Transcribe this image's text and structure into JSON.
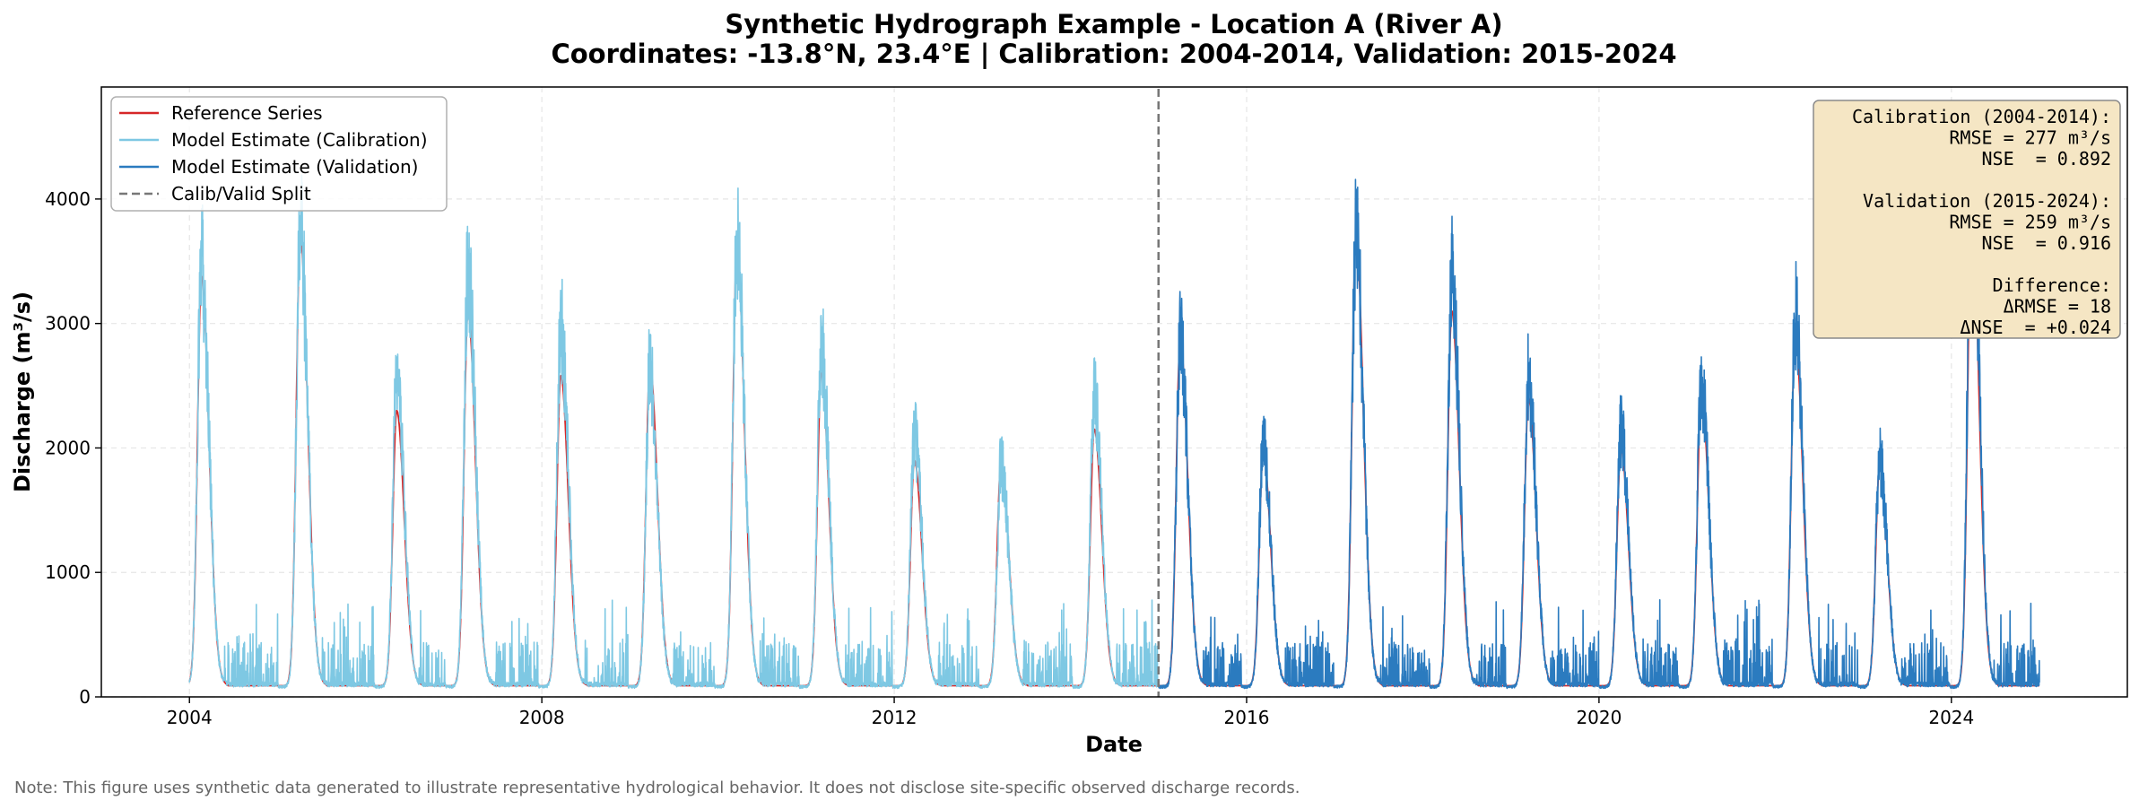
{
  "colors": {
    "reference": "#d62728",
    "calibration": "#7ec8e3",
    "validation": "#2b7bbf",
    "split": "#777777",
    "stats_box_fill": "#f5e6c4",
    "stats_box_edge": "#8a8a8a",
    "grid": "#e6e6e6"
  },
  "chart_data": {
    "type": "line",
    "title": "Synthetic Hydrograph Example - Location A (River A)",
    "subtitle": "Coordinates: -13.8°N, 23.4°E  |  Calibration: 2004-2014, Validation: 2015-2024",
    "xlabel": "Date",
    "ylabel": "Discharge (m³/s)",
    "xlim": [
      "2003-01-01",
      "2025-12-31"
    ],
    "ylim": [
      0,
      4900
    ],
    "x_ticks": [
      "2004",
      "2008",
      "2012",
      "2016",
      "2020",
      "2024"
    ],
    "y_ticks": [
      "0",
      "1000",
      "2000",
      "3000",
      "4000"
    ],
    "grid": true,
    "legend_position": "top-left",
    "split_date": "2015-01-01",
    "baseline": 90,
    "peaks": [
      {
        "date": "2004-02-20",
        "reference": 3380,
        "model": 3500
      },
      {
        "date": "2005-04-05",
        "reference": 3700,
        "model": 3750
      },
      {
        "date": "2006-05-10",
        "reference": 2300,
        "model": 2580
      },
      {
        "date": "2007-03-01",
        "reference": 3100,
        "model": 3420
      },
      {
        "date": "2008-03-20",
        "reference": 2580,
        "model": 2980
      },
      {
        "date": "2009-03-25",
        "reference": 2660,
        "model": 2650
      },
      {
        "date": "2010-03-20",
        "reference": 3600,
        "model": 3720
      },
      {
        "date": "2011-03-05",
        "reference": 2600,
        "model": 2850
      },
      {
        "date": "2012-03-25",
        "reference": 1900,
        "model": 2110
      },
      {
        "date": "2013-03-20",
        "reference": 1900,
        "model": 1880
      },
      {
        "date": "2014-04-10",
        "reference": 2150,
        "model": 2400
      },
      {
        "date": "2015-04-01",
        "reference": 2870,
        "model": 2880
      },
      {
        "date": "2016-03-10",
        "reference": 1960,
        "model": 2050
      },
      {
        "date": "2017-03-30",
        "reference": 3700,
        "model": 3710
      },
      {
        "date": "2018-05-01",
        "reference": 3100,
        "model": 3380
      },
      {
        "date": "2019-03-15",
        "reference": 2400,
        "model": 2570
      },
      {
        "date": "2020-04-01",
        "reference": 2000,
        "model": 2140
      },
      {
        "date": "2021-03-01",
        "reference": 2450,
        "model": 2540
      },
      {
        "date": "2022-03-25",
        "reference": 2900,
        "model": 3070
      },
      {
        "date": "2023-03-10",
        "reference": 1870,
        "model": 1920
      },
      {
        "date": "2024-03-25",
        "reference": 3900,
        "model": 4400
      }
    ],
    "series": [
      {
        "name": "Reference Series",
        "color": "#d62728"
      },
      {
        "name": "Model Estimate (Calibration)",
        "color": "#7ec8e3"
      },
      {
        "name": "Model Estimate (Validation)",
        "color": "#2b7bbf"
      },
      {
        "name": "Calib/Valid Split",
        "color": "#777777"
      }
    ]
  },
  "legend": {
    "items": [
      {
        "label": "Reference Series"
      },
      {
        "label": "Model Estimate (Calibration)"
      },
      {
        "label": "Model Estimate (Validation)"
      },
      {
        "label": "Calib/Valid Split"
      }
    ]
  },
  "stats_box": {
    "lines": [
      "Calibration (2004-2014):",
      "RMSE = 277 m³/s",
      "NSE  = 0.892",
      "",
      "Validation (2015-2024):",
      "RMSE = 259 m³/s",
      "NSE  = 0.916",
      "",
      "Difference:",
      "ΔRMSE = 18",
      "ΔNSE  = +0.024"
    ]
  },
  "note": "Note: This figure uses synthetic data generated to illustrate representative hydrological behavior. It does not disclose site-specific observed discharge records."
}
